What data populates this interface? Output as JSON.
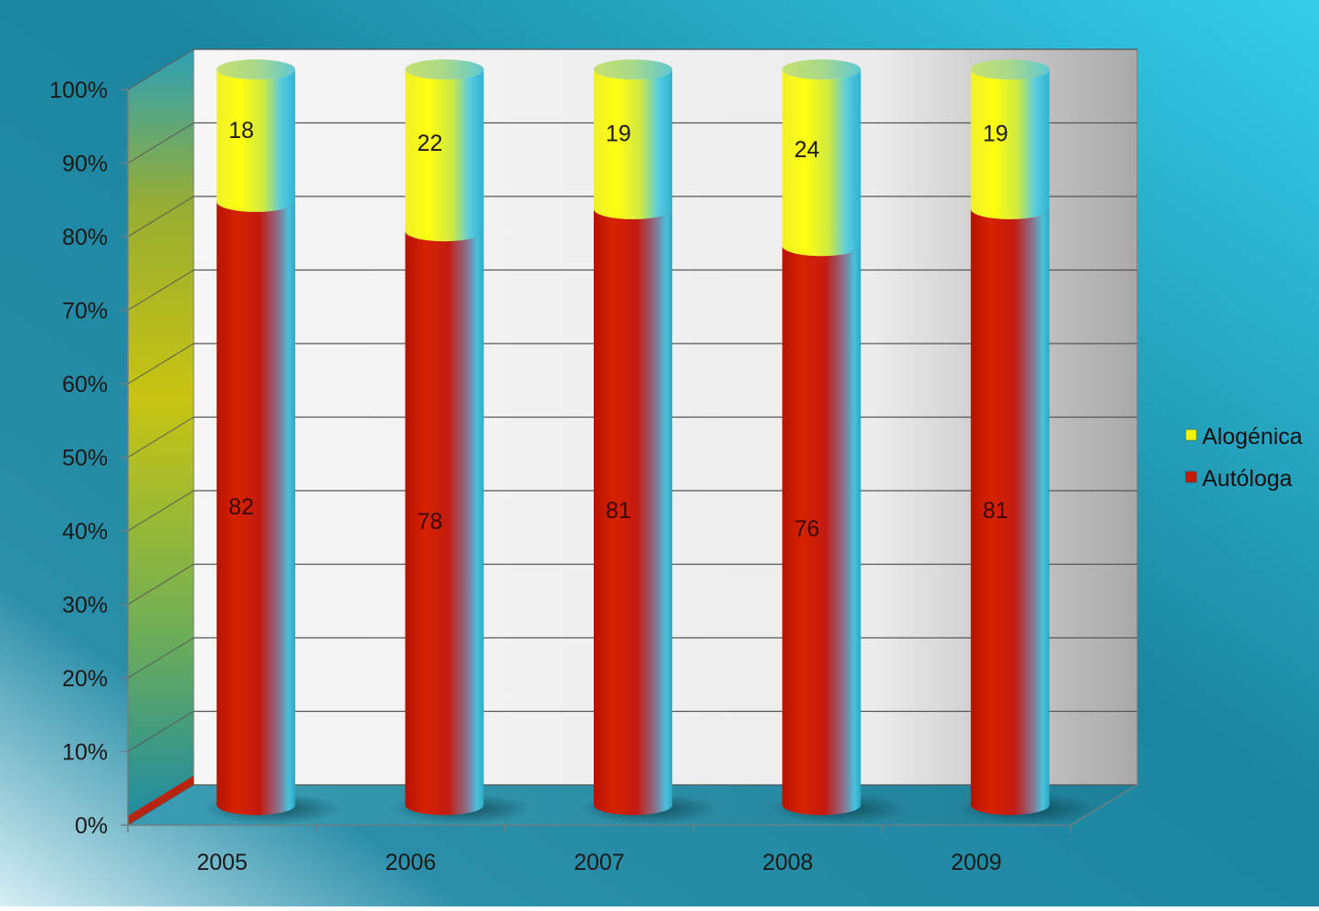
{
  "chart_data": {
    "type": "bar",
    "stacked": true,
    "percent_stacked": true,
    "three_d": true,
    "bar_shape": "cylinder",
    "categories": [
      "2005",
      "2006",
      "2007",
      "2008",
      "2009"
    ],
    "series": [
      {
        "name": "Autóloga",
        "values": [
          82,
          78,
          81,
          76,
          81
        ],
        "color": "#c81800"
      },
      {
        "name": "Alogénica",
        "values": [
          18,
          22,
          19,
          24,
          19
        ],
        "color": "#f2f20a"
      }
    ],
    "y_ticks": [
      "0%",
      "10%",
      "20%",
      "30%",
      "40%",
      "50%",
      "60%",
      "70%",
      "80%",
      "90%",
      "100%"
    ],
    "ylim": [
      0,
      100
    ],
    "grid": true,
    "legend_position": "right",
    "title": "",
    "xlabel": "",
    "ylabel": ""
  },
  "colors": {
    "background_dark": "#127b94",
    "background_light": "#2ec8e6",
    "floor": "#2a7f95",
    "back_wall": "#f4f4f4",
    "gridline": "#555555"
  }
}
